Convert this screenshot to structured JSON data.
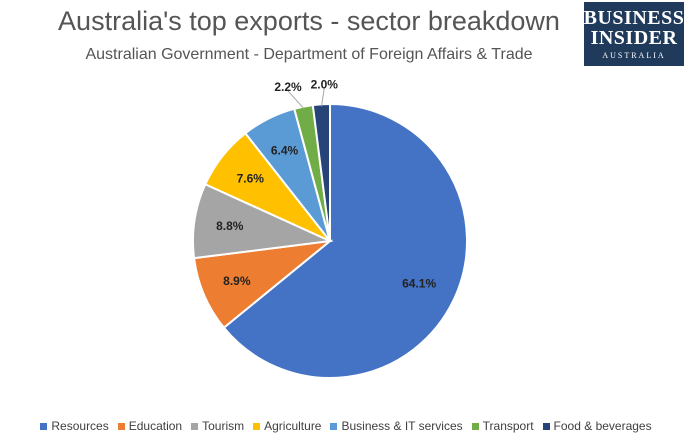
{
  "brand": {
    "line1": "BUSINESS",
    "line2": "INSIDER",
    "line3": "AUSTRALIA",
    "color": "#1f3a5a"
  },
  "chart_data": {
    "type": "pie",
    "title": "Australia's top exports - sector breakdown",
    "subtitle": "Australian Government - Department of Foreign Affairs & Trade",
    "start": "12 o'clock, clockwise",
    "slices": [
      {
        "name": "Resources",
        "value": 64.1,
        "label": "64.1%",
        "color": "#4472c4"
      },
      {
        "name": "Education",
        "value": 8.9,
        "label": "8.9%",
        "color": "#ed7d31"
      },
      {
        "name": "Tourism",
        "value": 8.8,
        "label": "8.8%",
        "color": "#a5a5a5"
      },
      {
        "name": "Agriculture",
        "value": 7.6,
        "label": "7.6%",
        "color": "#ffc000"
      },
      {
        "name": "Business & IT services",
        "value": 6.4,
        "label": "6.4%",
        "color": "#5b9bd5"
      },
      {
        "name": "Transport",
        "value": 2.2,
        "label": "2.2%",
        "color": "#70ad47"
      },
      {
        "name": "Food & beverages",
        "value": 2.0,
        "label": "2.0%",
        "color": "#264478"
      }
    ],
    "legend_position": "bottom"
  }
}
